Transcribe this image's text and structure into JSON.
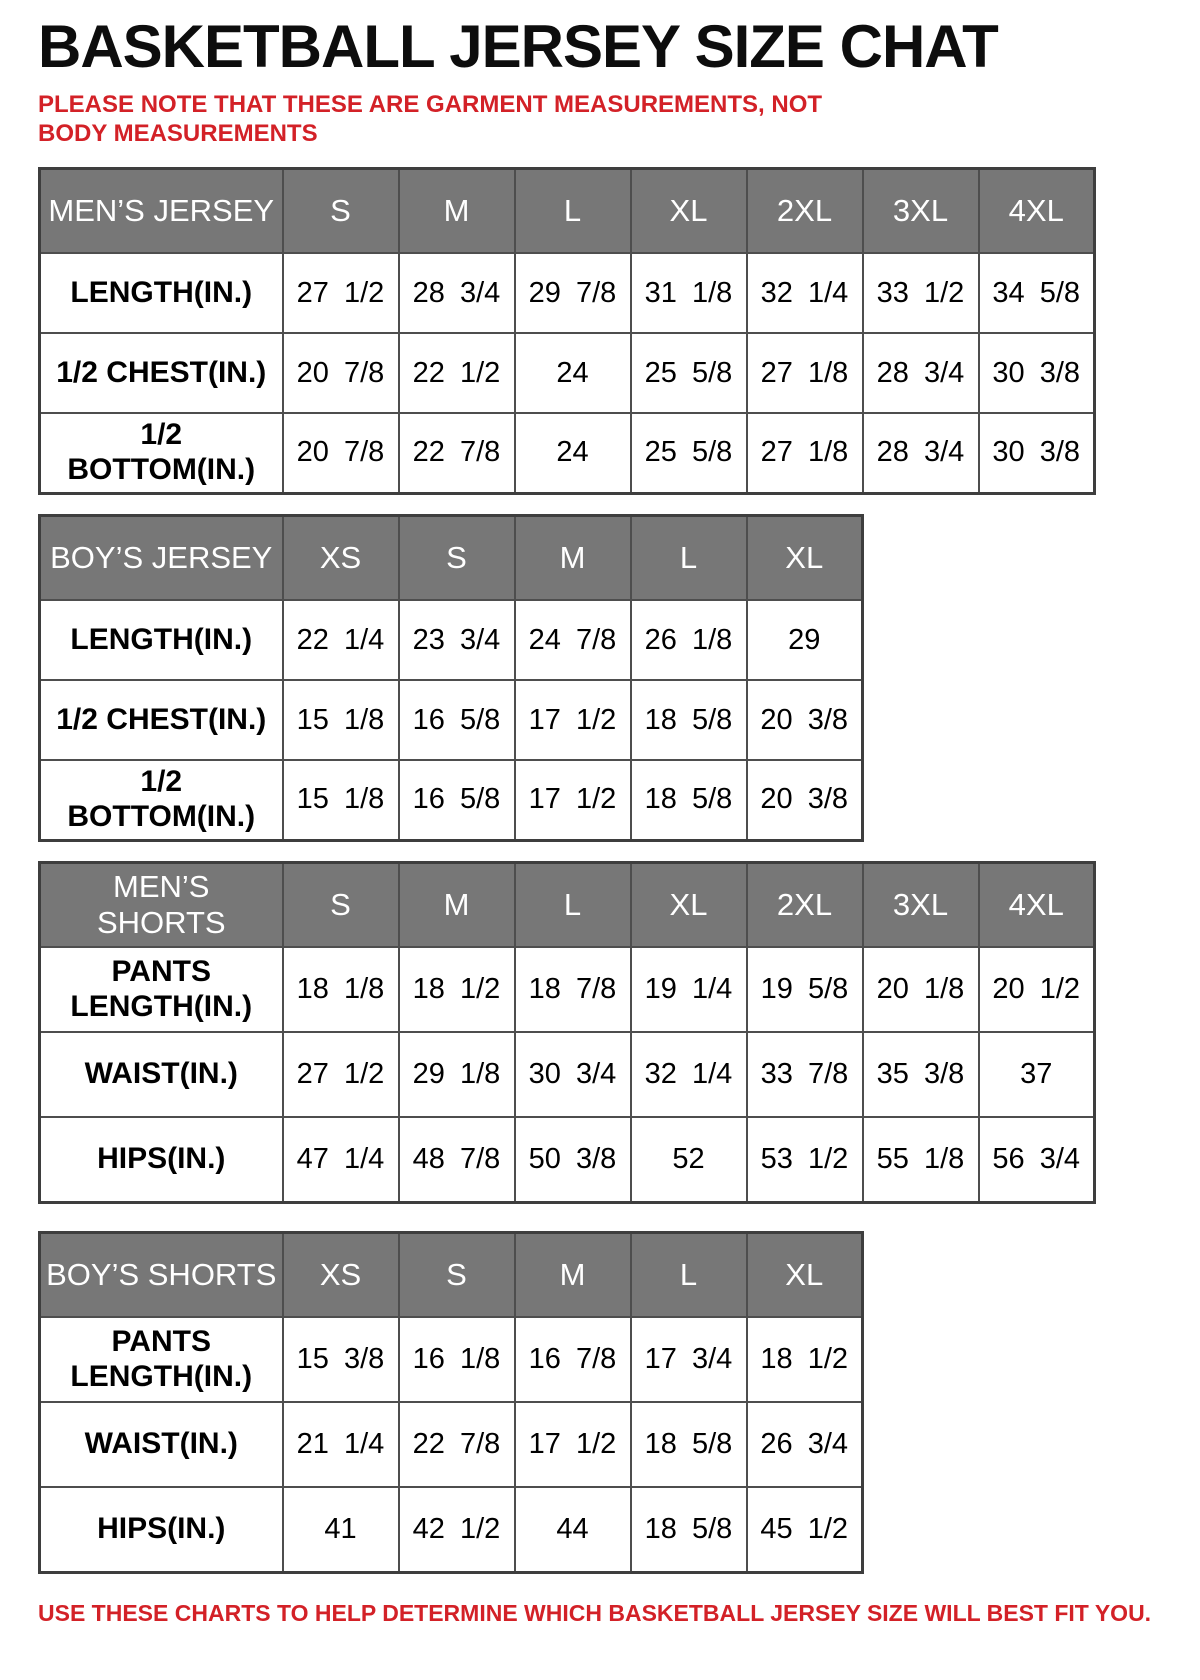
{
  "page": {
    "title": "BASKETBALL JERSEY SIZE CHAT",
    "note": "PLEASE NOTE THAT THESE ARE GARMENT MEASUREMENTS, NOT BODY MEASUREMENTS",
    "footer": "USE THESE CHARTS TO HELP DETERMINE WHICH BASKETBALL JERSEY SIZE WILL BEST FIT YOU.",
    "colors": {
      "accent_red": "#d32127",
      "header_gray": "#777777",
      "border_gray": "#4e4e4e",
      "text_black": "#000000"
    }
  },
  "tables": {
    "mens_jersey": {
      "header": [
        "MEN’S JERSEY",
        "S",
        "M",
        "L",
        "XL",
        "2XL",
        "3XL",
        "4XL"
      ],
      "rows": [
        {
          "label": "LENGTH(IN.)",
          "values": [
            "27 1/2",
            "28 3/4",
            "29 7/8",
            "31 1/8",
            "32 1/4",
            "33 1/2",
            "34 5/8"
          ]
        },
        {
          "label": "1/2 CHEST(IN.)",
          "values": [
            "20 7/8",
            "22 1/2",
            "24",
            "25 5/8",
            "27 1/8",
            "28 3/4",
            "30 3/8"
          ]
        },
        {
          "label": "1/2 BOTTOM(IN.)",
          "values": [
            "20 7/8",
            "22 7/8",
            "24",
            "25 5/8",
            "27 1/8",
            "28 3/4",
            "30 3/8"
          ]
        }
      ]
    },
    "boys_jersey": {
      "header": [
        "BOY’S JERSEY",
        "XS",
        "S",
        "M",
        "L",
        "XL"
      ],
      "rows": [
        {
          "label": "LENGTH(IN.)",
          "values": [
            "22 1/4",
            "23 3/4",
            "24 7/8",
            "26 1/8",
            "29"
          ]
        },
        {
          "label": "1/2 CHEST(IN.)",
          "values": [
            "15 1/8",
            "16 5/8",
            "17 1/2",
            "18 5/8",
            "20 3/8"
          ]
        },
        {
          "label": "1/2 BOTTOM(IN.)",
          "values": [
            "15 1/8",
            "16 5/8",
            "17 1/2",
            "18 5/8",
            "20 3/8"
          ]
        }
      ]
    },
    "mens_shorts": {
      "header": [
        "MEN’S SHORTS",
        "S",
        "M",
        "L",
        "XL",
        "2XL",
        "3XL",
        "4XL"
      ],
      "rows": [
        {
          "label": "PANTS\nLENGTH(IN.)",
          "values": [
            "18 1/8",
            "18 1/2",
            "18 7/8",
            "19 1/4",
            "19 5/8",
            "20 1/8",
            "20 1/2"
          ]
        },
        {
          "label": "WAIST(IN.)",
          "values": [
            "27 1/2",
            "29 1/8",
            "30 3/4",
            "32 1/4",
            "33 7/8",
            "35 3/8",
            "37"
          ]
        },
        {
          "label": "HIPS(IN.)",
          "values": [
            "47 1/4",
            "48 7/8",
            "50 3/8",
            "52",
            "53 1/2",
            "55 1/8",
            "56 3/4"
          ]
        }
      ]
    },
    "boys_shorts": {
      "header": [
        "BOY’S SHORTS",
        "XS",
        "S",
        "M",
        "L",
        "XL"
      ],
      "rows": [
        {
          "label": "PANTS\nLENGTH(IN.)",
          "values": [
            "15 3/8",
            "16 1/8",
            "16 7/8",
            "17 3/4",
            "18 1/2"
          ]
        },
        {
          "label": "WAIST(IN.)",
          "values": [
            "21 1/4",
            "22 7/8",
            "17 1/2",
            "18 5/8",
            "26 3/4"
          ]
        },
        {
          "label": "HIPS(IN.)",
          "values": [
            "41",
            "42 1/2",
            "44",
            "18 5/8",
            "45 1/2"
          ]
        }
      ]
    }
  }
}
